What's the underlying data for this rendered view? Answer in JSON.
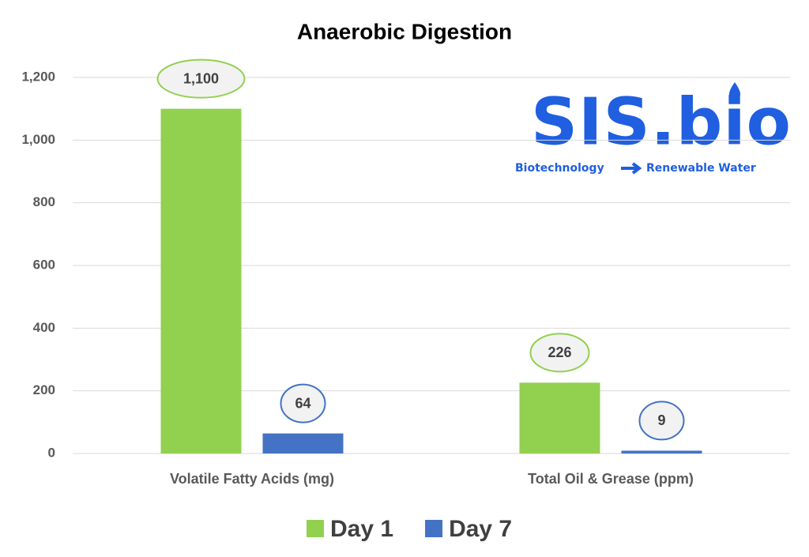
{
  "chart_data": {
    "type": "bar",
    "title": "Anaerobic Digestion",
    "categories": [
      "Volatile Fatty Acids (mg)",
      "Total Oil & Grease (ppm)"
    ],
    "series": [
      {
        "name": "Day 1",
        "color": "#92d050",
        "values": [
          1100,
          226
        ],
        "value_labels": [
          "1,100",
          "226"
        ]
      },
      {
        "name": "Day 7",
        "color": "#4472c4",
        "values": [
          64,
          9
        ],
        "value_labels": [
          "64",
          "9"
        ]
      }
    ],
    "ylim": [
      0,
      1200
    ],
    "yticks": [
      0,
      200,
      400,
      600,
      800,
      {
        "value": 1000,
        "label": "1,000"
      },
      {
        "value": 1200,
        "label": "1,200"
      }
    ],
    "grid": true,
    "legend": "bottom"
  },
  "logo": {
    "name": "SIS.bio",
    "left": "Biotechnology",
    "right": "Renewable Water"
  }
}
